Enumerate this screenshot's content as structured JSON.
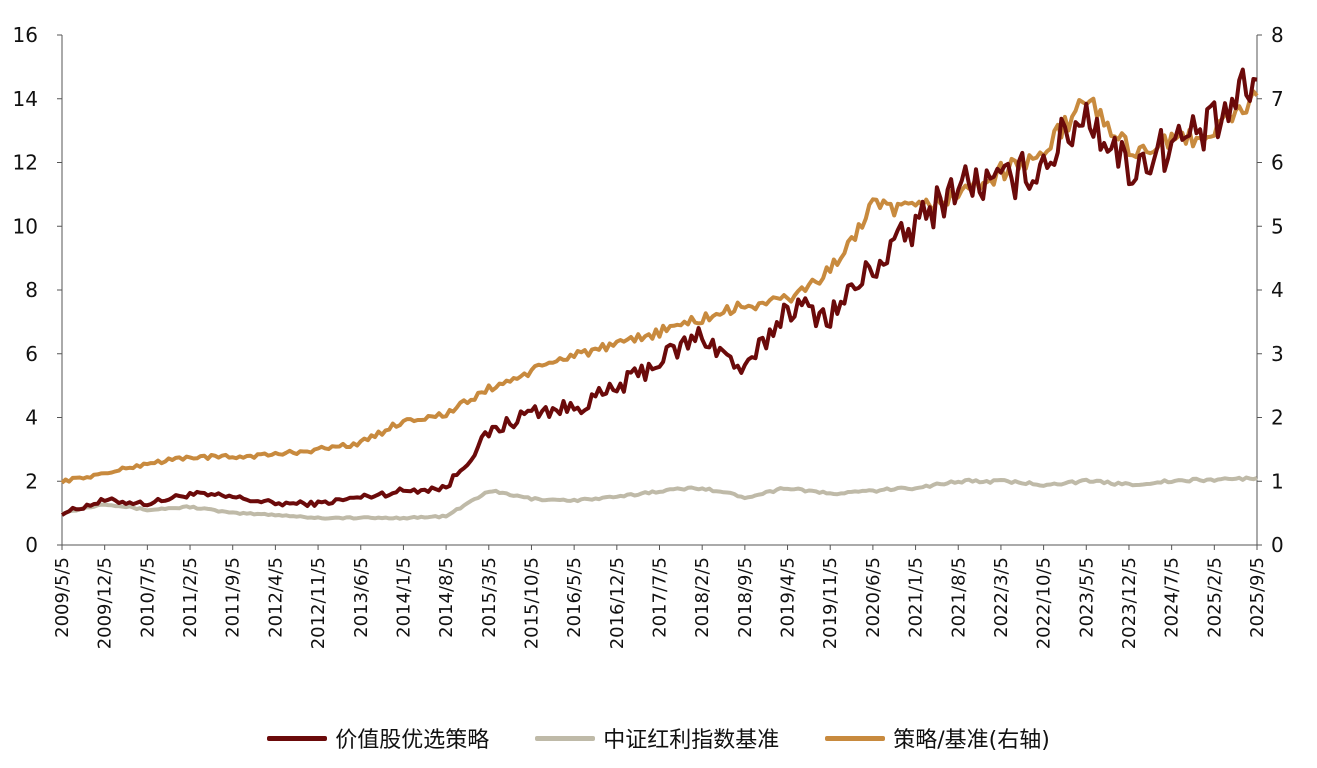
{
  "chart_data": {
    "type": "line",
    "title": "",
    "xlabel": "",
    "ylabel": "",
    "y_left": {
      "range": [
        0,
        16
      ],
      "ticks": [
        "0",
        "2",
        "4",
        "6",
        "8",
        "10",
        "12",
        "14",
        "16"
      ]
    },
    "y_right": {
      "range": [
        0,
        8
      ],
      "ticks": [
        "0",
        "1",
        "2",
        "3",
        "4",
        "5",
        "6",
        "7",
        "8"
      ]
    },
    "grid": false,
    "legend_position": "bottom",
    "categories": [
      "2009/5/5",
      "2009/12/5",
      "2010/7/5",
      "2011/2/5",
      "2011/9/5",
      "2012/4/5",
      "2012/11/5",
      "2013/6/5",
      "2014/1/5",
      "2014/8/5",
      "2015/3/5",
      "2015/10/5",
      "2016/5/5",
      "2016/12/5",
      "2017/7/5",
      "2018/2/5",
      "2018/9/5",
      "2019/4/5",
      "2019/11/5",
      "2020/6/5",
      "2021/1/5",
      "2021/8/5",
      "2022/3/5",
      "2022/10/5",
      "2023/5/5",
      "2023/12/5",
      "2024/7/5",
      "2025/2/5",
      "2025/9/5"
    ],
    "series": [
      {
        "name": "价值股优选策略",
        "axis": "left",
        "color": "#6b0a0a",
        "values": [
          1.0,
          1.4,
          1.3,
          1.6,
          1.5,
          1.3,
          1.3,
          1.5,
          1.7,
          1.8,
          3.5,
          4.2,
          4.3,
          4.9,
          5.8,
          6.6,
          5.4,
          7.5,
          7.2,
          8.7,
          10.0,
          11.4,
          11.3,
          12.0,
          13.6,
          11.8,
          12.6,
          13.1,
          14.6
        ]
      },
      {
        "name": "中证红利指数基准",
        "axis": "left",
        "color": "#bfbaa8",
        "values": [
          1.0,
          1.3,
          1.1,
          1.2,
          1.0,
          0.95,
          0.85,
          0.85,
          0.85,
          0.9,
          1.7,
          1.45,
          1.4,
          1.5,
          1.7,
          1.8,
          1.5,
          1.8,
          1.6,
          1.7,
          1.8,
          2.0,
          2.0,
          1.9,
          2.0,
          1.9,
          2.0,
          2.05,
          2.1
        ]
      },
      {
        "name": "策略/基准(右轴)",
        "axis": "right",
        "color": "#c88a3e",
        "values": [
          1.0,
          1.12,
          1.28,
          1.38,
          1.38,
          1.42,
          1.5,
          1.6,
          1.95,
          2.05,
          2.45,
          2.72,
          3.0,
          3.12,
          3.35,
          3.55,
          3.75,
          3.85,
          4.3,
          5.3,
          5.25,
          5.5,
          5.85,
          6.15,
          7.0,
          6.2,
          6.3,
          6.5,
          7.05
        ]
      }
    ]
  }
}
